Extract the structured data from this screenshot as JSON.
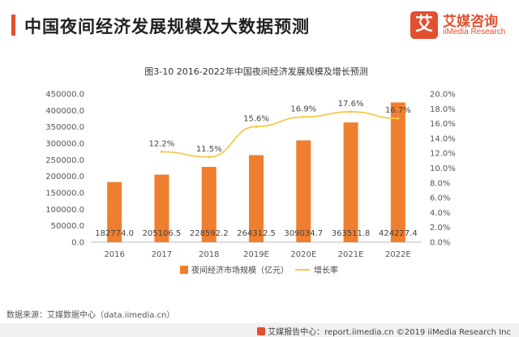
{
  "header": {
    "title": "中国夜间经济发展规模及大数据预测",
    "logo_mark": "艾",
    "logo_name": "艾媒咨询",
    "logo_sub": "iiMedia Research"
  },
  "source": "数据来源：艾媒数据中心（data.iimedia.cn）",
  "footer": "艾媒报告中心：report.iimedia.cn  ©2019  iiMedia Research Inc",
  "colors": {
    "bar": "#ef7f2e",
    "line": "#f5c94b",
    "accent": "#e2502f"
  },
  "chart_data": {
    "type": "bar",
    "title": "图3-10 2016-2022年中国夜间经济发展规模及增长预测",
    "categories": [
      "2016",
      "2017",
      "2018",
      "2019E",
      "2020E",
      "2021E",
      "2022E"
    ],
    "series": [
      {
        "name": "夜间经济市场规模（亿元）",
        "type": "bar",
        "axis": "left",
        "values": [
          182774.0,
          205106.5,
          228592.2,
          264312.5,
          309034.7,
          363511.8,
          424227.4
        ],
        "labels": [
          "182774.0",
          "205106.5",
          "228592.2",
          "264312.5",
          "309034.7",
          "363511.8",
          "424227.4"
        ]
      },
      {
        "name": "增长率",
        "type": "line",
        "axis": "right",
        "values": [
          null,
          12.2,
          11.5,
          15.6,
          16.9,
          17.6,
          16.7
        ],
        "labels": [
          "",
          "12.2%",
          "11.5%",
          "15.6%",
          "16.9%",
          "17.6%",
          "16.7%"
        ]
      }
    ],
    "y_left": {
      "ylim": [
        0,
        450000
      ],
      "ticks": [
        "0.0",
        "50000.0",
        "100000.0",
        "150000.0",
        "200000.0",
        "250000.0",
        "300000.0",
        "350000.0",
        "400000.0",
        "450000.0"
      ]
    },
    "y_right": {
      "ylim": [
        0,
        20
      ],
      "ticks": [
        "0.0%",
        "2.0%",
        "4.0%",
        "6.0%",
        "8.0%",
        "10.0%",
        "12.0%",
        "14.0%",
        "16.0%",
        "18.0%",
        "20.0%"
      ]
    },
    "grid": false,
    "legend_position": "bottom"
  }
}
